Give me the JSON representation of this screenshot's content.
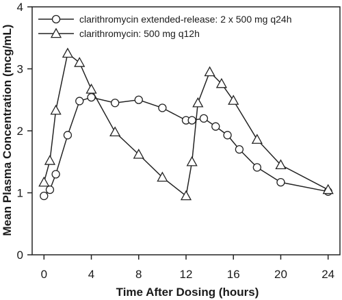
{
  "chart_data": {
    "type": "line",
    "xlabel": "Time After Dosing (hours)",
    "ylabel": "Mean Plasma Concentration (mcg/mL)",
    "xlim": [
      -1,
      25
    ],
    "ylim": [
      0,
      4
    ],
    "xticks": [
      0,
      4,
      8,
      12,
      16,
      20,
      24
    ],
    "yticks": [
      0,
      1,
      2,
      3,
      4
    ],
    "grid": false,
    "legend": "top-left",
    "series": [
      {
        "name": "clarithromycin extended-release: 2 x 500 mg q24h",
        "marker": "circle",
        "x": [
          0,
          0.5,
          1,
          2,
          3,
          4,
          6,
          8,
          10,
          12,
          12.5,
          13.5,
          14.5,
          15.5,
          16.5,
          18,
          20,
          24
        ],
        "y": [
          0.95,
          1.05,
          1.3,
          1.93,
          2.48,
          2.54,
          2.45,
          2.5,
          2.37,
          2.17,
          2.17,
          2.2,
          2.07,
          1.93,
          1.7,
          1.41,
          1.17,
          1.02
        ]
      },
      {
        "name": "clarithromycin: 500 mg q12h",
        "marker": "triangle",
        "x": [
          0,
          0.5,
          1,
          2,
          3,
          4,
          6,
          8,
          10,
          12,
          12.5,
          13,
          14,
          15,
          16,
          18,
          20,
          24
        ],
        "y": [
          1.17,
          1.52,
          2.33,
          3.25,
          3.1,
          2.67,
          1.98,
          1.62,
          1.25,
          0.95,
          1.5,
          2.45,
          2.95,
          2.76,
          2.49,
          1.86,
          1.45,
          1.05
        ]
      }
    ]
  }
}
